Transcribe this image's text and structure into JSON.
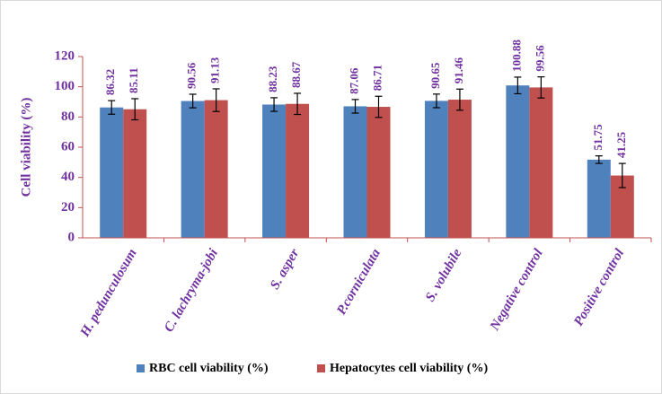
{
  "chart_data": {
    "type": "bar",
    "y_label": "Cell viability  (%)",
    "categories": [
      "H. pedunculosum",
      "C. lachryma-jobi",
      "S. asper",
      "P.corniculata",
      "S. volubile",
      "Negative control",
      "Positive control"
    ],
    "series": [
      {
        "name": "RBC cell viability (%)",
        "color": "#4f81bd",
        "values": [
          86.32,
          90.56,
          88.23,
          87.06,
          90.65,
          100.88,
          51.75
        ],
        "errors": [
          4.5,
          4.5,
          4.5,
          4.5,
          4.5,
          5.5,
          2.5
        ]
      },
      {
        "name": "Hepatocytes cell viability (%)",
        "color": "#c0504d",
        "values": [
          85.11,
          91.13,
          88.67,
          86.71,
          91.46,
          99.56,
          41.25
        ],
        "errors": [
          7,
          7.5,
          7,
          7,
          7,
          7,
          8
        ]
      }
    ],
    "ylim": [
      0,
      120
    ],
    "yticks": [
      0,
      20,
      40,
      60,
      80,
      100,
      120
    ],
    "legend": "bottom"
  }
}
